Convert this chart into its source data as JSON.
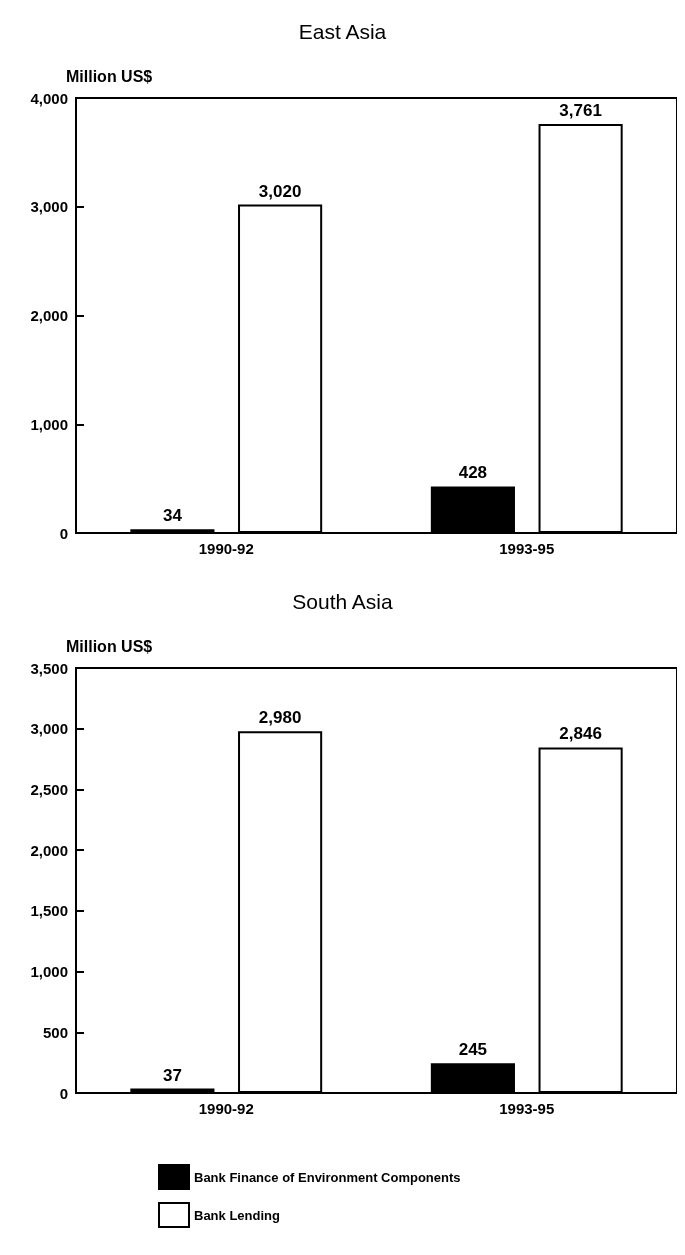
{
  "chart_data": [
    {
      "type": "bar",
      "title": "East Asia",
      "ylabel": "Million US$",
      "categories": [
        "1990-92",
        "1993-95"
      ],
      "series": [
        {
          "color": "#000000",
          "values": [
            34,
            428
          ],
          "value_labels": [
            "34",
            "428"
          ]
        },
        {
          "color": "#ffffff",
          "values": [
            3020,
            3761
          ],
          "value_labels": [
            "3,020",
            "3,761"
          ]
        }
      ],
      "ylim": [
        0,
        4000
      ],
      "yticks": [
        {
          "value": 0,
          "label": "0"
        },
        {
          "value": 1000,
          "label": "1,000"
        },
        {
          "value": 2000,
          "label": "2,000"
        },
        {
          "value": 3000,
          "label": "3,000"
        },
        {
          "value": 4000,
          "label": "4,000"
        }
      ],
      "grid": false,
      "legend": false
    },
    {
      "type": "bar",
      "title": "South Asia",
      "ylabel": "Million US$",
      "categories": [
        "1990-92",
        "1993-95"
      ],
      "series": [
        {
          "name": "Bank Finance of Environment Components",
          "color": "#000000",
          "values": [
            37,
            245
          ],
          "value_labels": [
            "37",
            "245"
          ]
        },
        {
          "name": "Bank Lending",
          "color": "#ffffff",
          "values": [
            2980,
            2846
          ],
          "value_labels": [
            "2,980",
            "2,846"
          ]
        }
      ],
      "ylim": [
        0,
        3500
      ],
      "yticks": [
        {
          "value": 0,
          "label": "0"
        },
        {
          "value": 500,
          "label": "500"
        },
        {
          "value": 1000,
          "label": "1,000"
        },
        {
          "value": 1500,
          "label": "1,500"
        },
        {
          "value": 2000,
          "label": "2,000"
        },
        {
          "value": 2500,
          "label": "2,500"
        },
        {
          "value": 3000,
          "label": "3,000"
        },
        {
          "value": 3500,
          "label": "3,500"
        }
      ],
      "grid": false,
      "legend": "bottom"
    }
  ]
}
